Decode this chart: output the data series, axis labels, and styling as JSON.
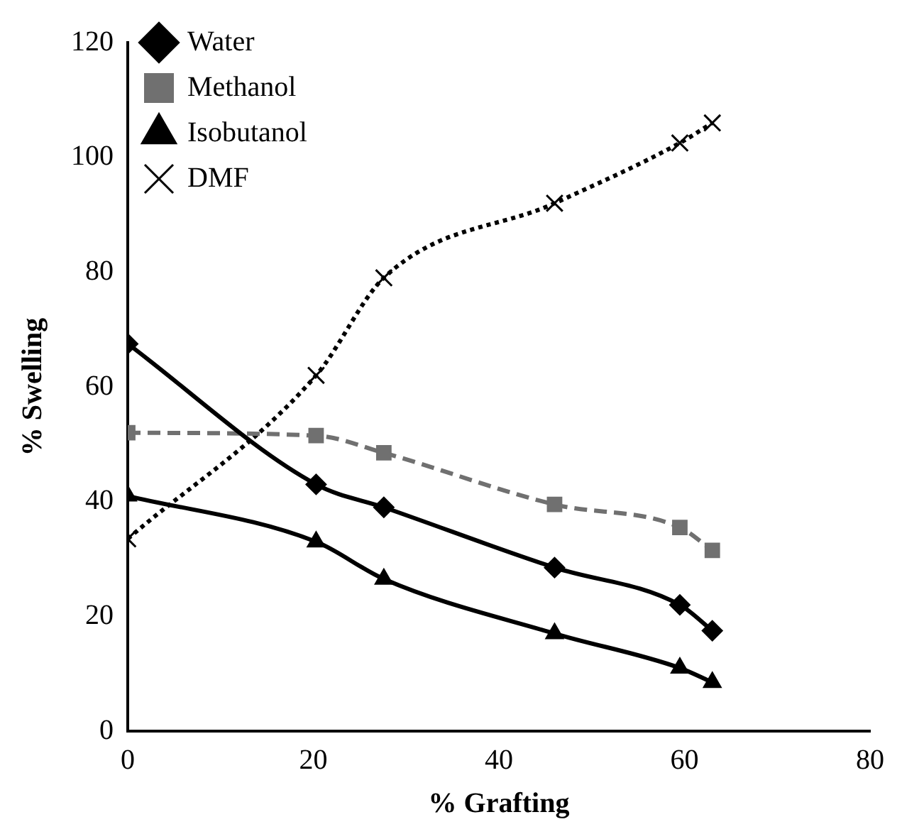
{
  "chart_data": {
    "type": "line",
    "xlabel": "% Grafting",
    "ylabel": "% Swelling",
    "xlim": [
      0,
      80
    ],
    "xticks": [
      0,
      20,
      40,
      60,
      80
    ],
    "ylim": [
      0,
      120
    ],
    "yticks": [
      0,
      20,
      40,
      60,
      80,
      100,
      120
    ],
    "grid": false,
    "legend": "top left",
    "series": [
      {
        "name": "Water",
        "color": "#000000",
        "marker": "diamond",
        "line_style": "solid",
        "x": [
          0,
          20.3,
          27.6,
          46,
          59.5,
          63
        ],
        "values": [
          67.5,
          43,
          39,
          28.5,
          22,
          17.5
        ]
      },
      {
        "name": "Methanol",
        "color": "#707070",
        "marker": "square",
        "line_style": "dashed",
        "x": [
          0,
          20.3,
          27.6,
          46,
          59.5,
          63
        ],
        "values": [
          52,
          51.5,
          48.5,
          39.5,
          35.5,
          31.5
        ]
      },
      {
        "name": "Isobutanol",
        "color": "#000000",
        "marker": "triangle",
        "line_style": "solid",
        "x": [
          0,
          20.3,
          27.6,
          46,
          59.5,
          63
        ],
        "values": [
          41,
          33,
          26.5,
          17,
          11,
          8.5
        ]
      },
      {
        "name": "DMF",
        "color": "#000000",
        "marker": "cross",
        "line_style": "dotted",
        "x": [
          0,
          20.3,
          27.6,
          46,
          59.5,
          63
        ],
        "values": [
          33.5,
          62,
          79,
          92,
          102.5,
          106
        ]
      }
    ]
  }
}
